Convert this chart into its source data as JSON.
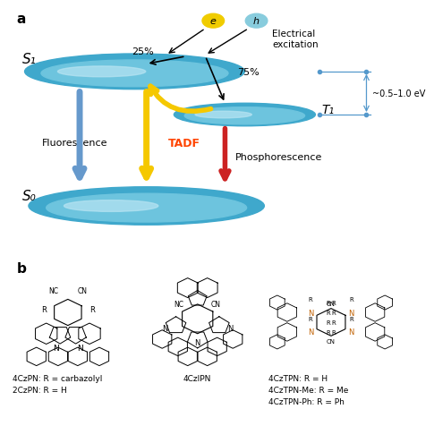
{
  "panel_a_label": "a",
  "panel_b_label": "b",
  "s1_label": "S₁",
  "s0_label": "S₀",
  "t1_label": "T₁",
  "t1_energy": "~0.5–1.0 eV",
  "fluorescence_label": "Fluorescence",
  "tadf_label": "TADF",
  "phosphorescence_label": "Phosphorescence",
  "electrical_excitation_label": "Electrical\nexcitation",
  "percent_25": "25%",
  "percent_75": "75%",
  "e_label": "e",
  "h_label": "h",
  "disk_color_dark": "#5ab4d6",
  "disk_color_light": "#a8ddef",
  "disk_color_shine": "#d6f0f8",
  "blue_arrow_color": "#6699cc",
  "yellow_arrow_color": "#f5c800",
  "red_arrow_color": "#cc2222",
  "tadf_text_color": "#ff4400",
  "e_circle_color": "#f5d020",
  "h_circle_color": "#aaddee",
  "mol1_label1": "4CzPN: R = carbazolyl",
  "mol1_label2": "2CzPN: R = H",
  "mol2_label": "4CzIPN",
  "mol3_label1": "4CzTPN: R = H",
  "mol3_label2": "4CzTPN-Me: R = Me",
  "mol3_label3": "4CzTPN-Ph: R = Ph",
  "background_color": "#ffffff"
}
